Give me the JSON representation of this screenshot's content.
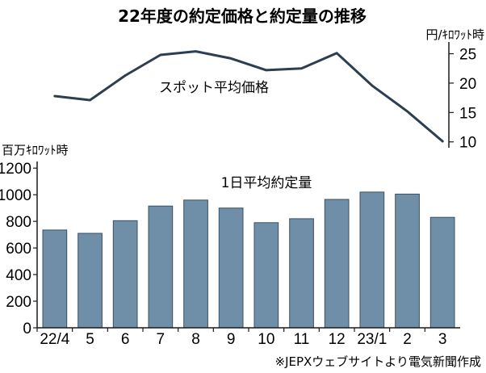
{
  "title": "22年度の約定価格と約定量の推移",
  "source": "※JEPXウェブサイトより電気新聞作成",
  "colors": {
    "bar_fill": "#6f8fa8",
    "bar_stroke": "#3b4f60",
    "line": "#2c3e50",
    "axis": "#1a1a1a"
  },
  "chart_data": [
    {
      "type": "line",
      "label": "スポット平均価格",
      "unit": "円/ｷﾛﾜｯﾄ時",
      "categories": [
        "22/4",
        "5",
        "6",
        "7",
        "8",
        "9",
        "10",
        "11",
        "12",
        "23/1",
        "2",
        "3"
      ],
      "values": [
        17.8,
        17.1,
        21.3,
        24.8,
        25.4,
        24.2,
        22.2,
        22.5,
        25.1,
        19.6,
        15.2,
        10.1
      ],
      "yticks": [
        10,
        15,
        20,
        25
      ],
      "ylim": [
        9,
        27
      ],
      "axis_side": "right"
    },
    {
      "type": "bar",
      "label": "1日平均約定量",
      "unit": "百万ｷﾛﾜｯﾄ時",
      "categories": [
        "22/4",
        "5",
        "6",
        "7",
        "8",
        "9",
        "10",
        "11",
        "12",
        "23/1",
        "2",
        "3"
      ],
      "values": [
        735,
        710,
        805,
        915,
        960,
        900,
        790,
        820,
        965,
        1020,
        1005,
        830
      ],
      "yticks": [
        0,
        200,
        400,
        600,
        800,
        1000,
        1200
      ],
      "ylim": [
        0,
        1250
      ],
      "axis_side": "left"
    }
  ]
}
